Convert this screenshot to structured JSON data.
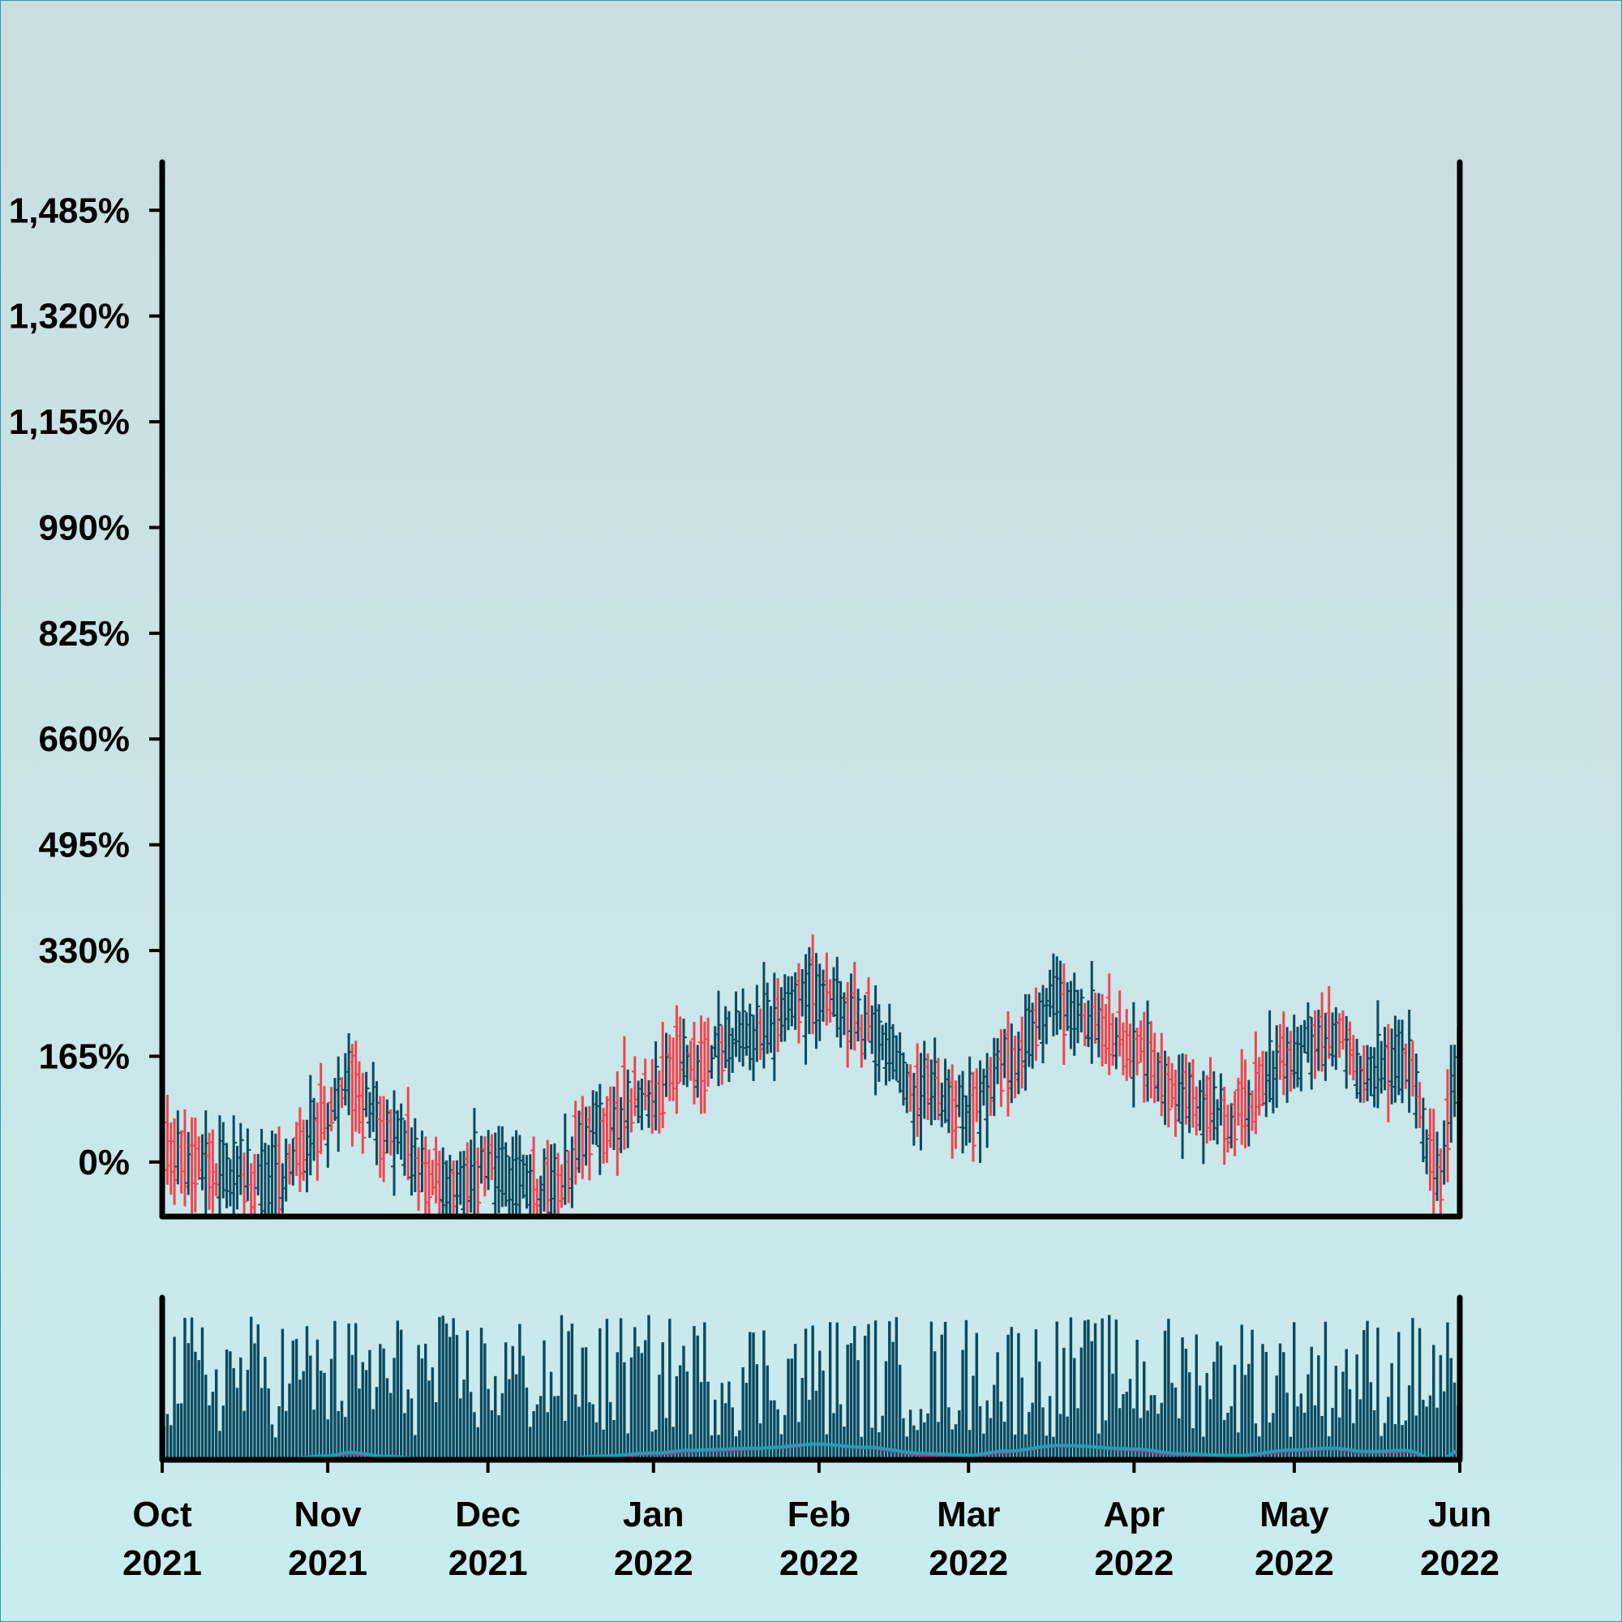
{
  "chart_data": {
    "type": "ohlc",
    "title": "",
    "xlabel": "",
    "ylabel": "",
    "y_unit": "%",
    "ylim": [
      -85,
      1560
    ],
    "yticks": [
      0,
      165,
      330,
      495,
      660,
      825,
      990,
      1155,
      1320,
      1485
    ],
    "ytick_labels": [
      "0%",
      "165%",
      "330%",
      "495%",
      "660%",
      "825%",
      "990%",
      "1,155%",
      "1,320%",
      "1,485%"
    ],
    "x_range": [
      "2021-10-01",
      "2022-06-01"
    ],
    "xticks": [
      {
        "date": "2021-10-01",
        "month": "Oct",
        "year": "2021"
      },
      {
        "date": "2021-11-01",
        "month": "Nov",
        "year": "2021"
      },
      {
        "date": "2021-12-01",
        "month": "Dec",
        "year": "2021"
      },
      {
        "date": "2022-01-01",
        "month": "Jan",
        "year": "2022"
      },
      {
        "date": "2022-02-01",
        "month": "Feb",
        "year": "2022"
      },
      {
        "date": "2022-03-01",
        "month": "Mar",
        "year": "2022"
      },
      {
        "date": "2022-04-01",
        "month": "Apr",
        "year": "2022"
      },
      {
        "date": "2022-05-01",
        "month": "May",
        "year": "2022"
      },
      {
        "date": "2022-06-01",
        "month": "Jun",
        "year": "2022"
      }
    ],
    "grid": false,
    "colors": {
      "up": "#0b4a60",
      "down": "#f0454f",
      "volume": "#0b4a60",
      "ma_fast": "#e0198c",
      "ma_slow": "#1aa3b4",
      "axis": "#000000"
    },
    "anchors": [
      {
        "date": "2021-10-01",
        "value": 10
      },
      {
        "date": "2021-10-12",
        "value": -10
      },
      {
        "date": "2021-10-20",
        "value": -40
      },
      {
        "date": "2021-11-01",
        "value": 60
      },
      {
        "date": "2021-11-05",
        "value": 120
      },
      {
        "date": "2021-11-12",
        "value": 50
      },
      {
        "date": "2021-11-22",
        "value": -35
      },
      {
        "date": "2021-12-01",
        "value": -10
      },
      {
        "date": "2021-12-12",
        "value": -40
      },
      {
        "date": "2021-12-22",
        "value": 60
      },
      {
        "date": "2022-01-01",
        "value": 110
      },
      {
        "date": "2022-01-08",
        "value": 160
      },
      {
        "date": "2022-01-20",
        "value": 200
      },
      {
        "date": "2022-02-01",
        "value": 270
      },
      {
        "date": "2022-02-10",
        "value": 210
      },
      {
        "date": "2022-02-20",
        "value": 110
      },
      {
        "date": "2022-03-01",
        "value": 80
      },
      {
        "date": "2022-03-08",
        "value": 150
      },
      {
        "date": "2022-03-18",
        "value": 250
      },
      {
        "date": "2022-04-01",
        "value": 180
      },
      {
        "date": "2022-04-10",
        "value": 100
      },
      {
        "date": "2022-04-20",
        "value": 70
      },
      {
        "date": "2022-05-01",
        "value": 170
      },
      {
        "date": "2022-05-08",
        "value": 200
      },
      {
        "date": "2022-05-15",
        "value": 140
      },
      {
        "date": "2022-05-22",
        "value": 160
      },
      {
        "date": "2022-05-28",
        "value": -20
      },
      {
        "date": "2022-06-01",
        "value": 160
      }
    ]
  }
}
